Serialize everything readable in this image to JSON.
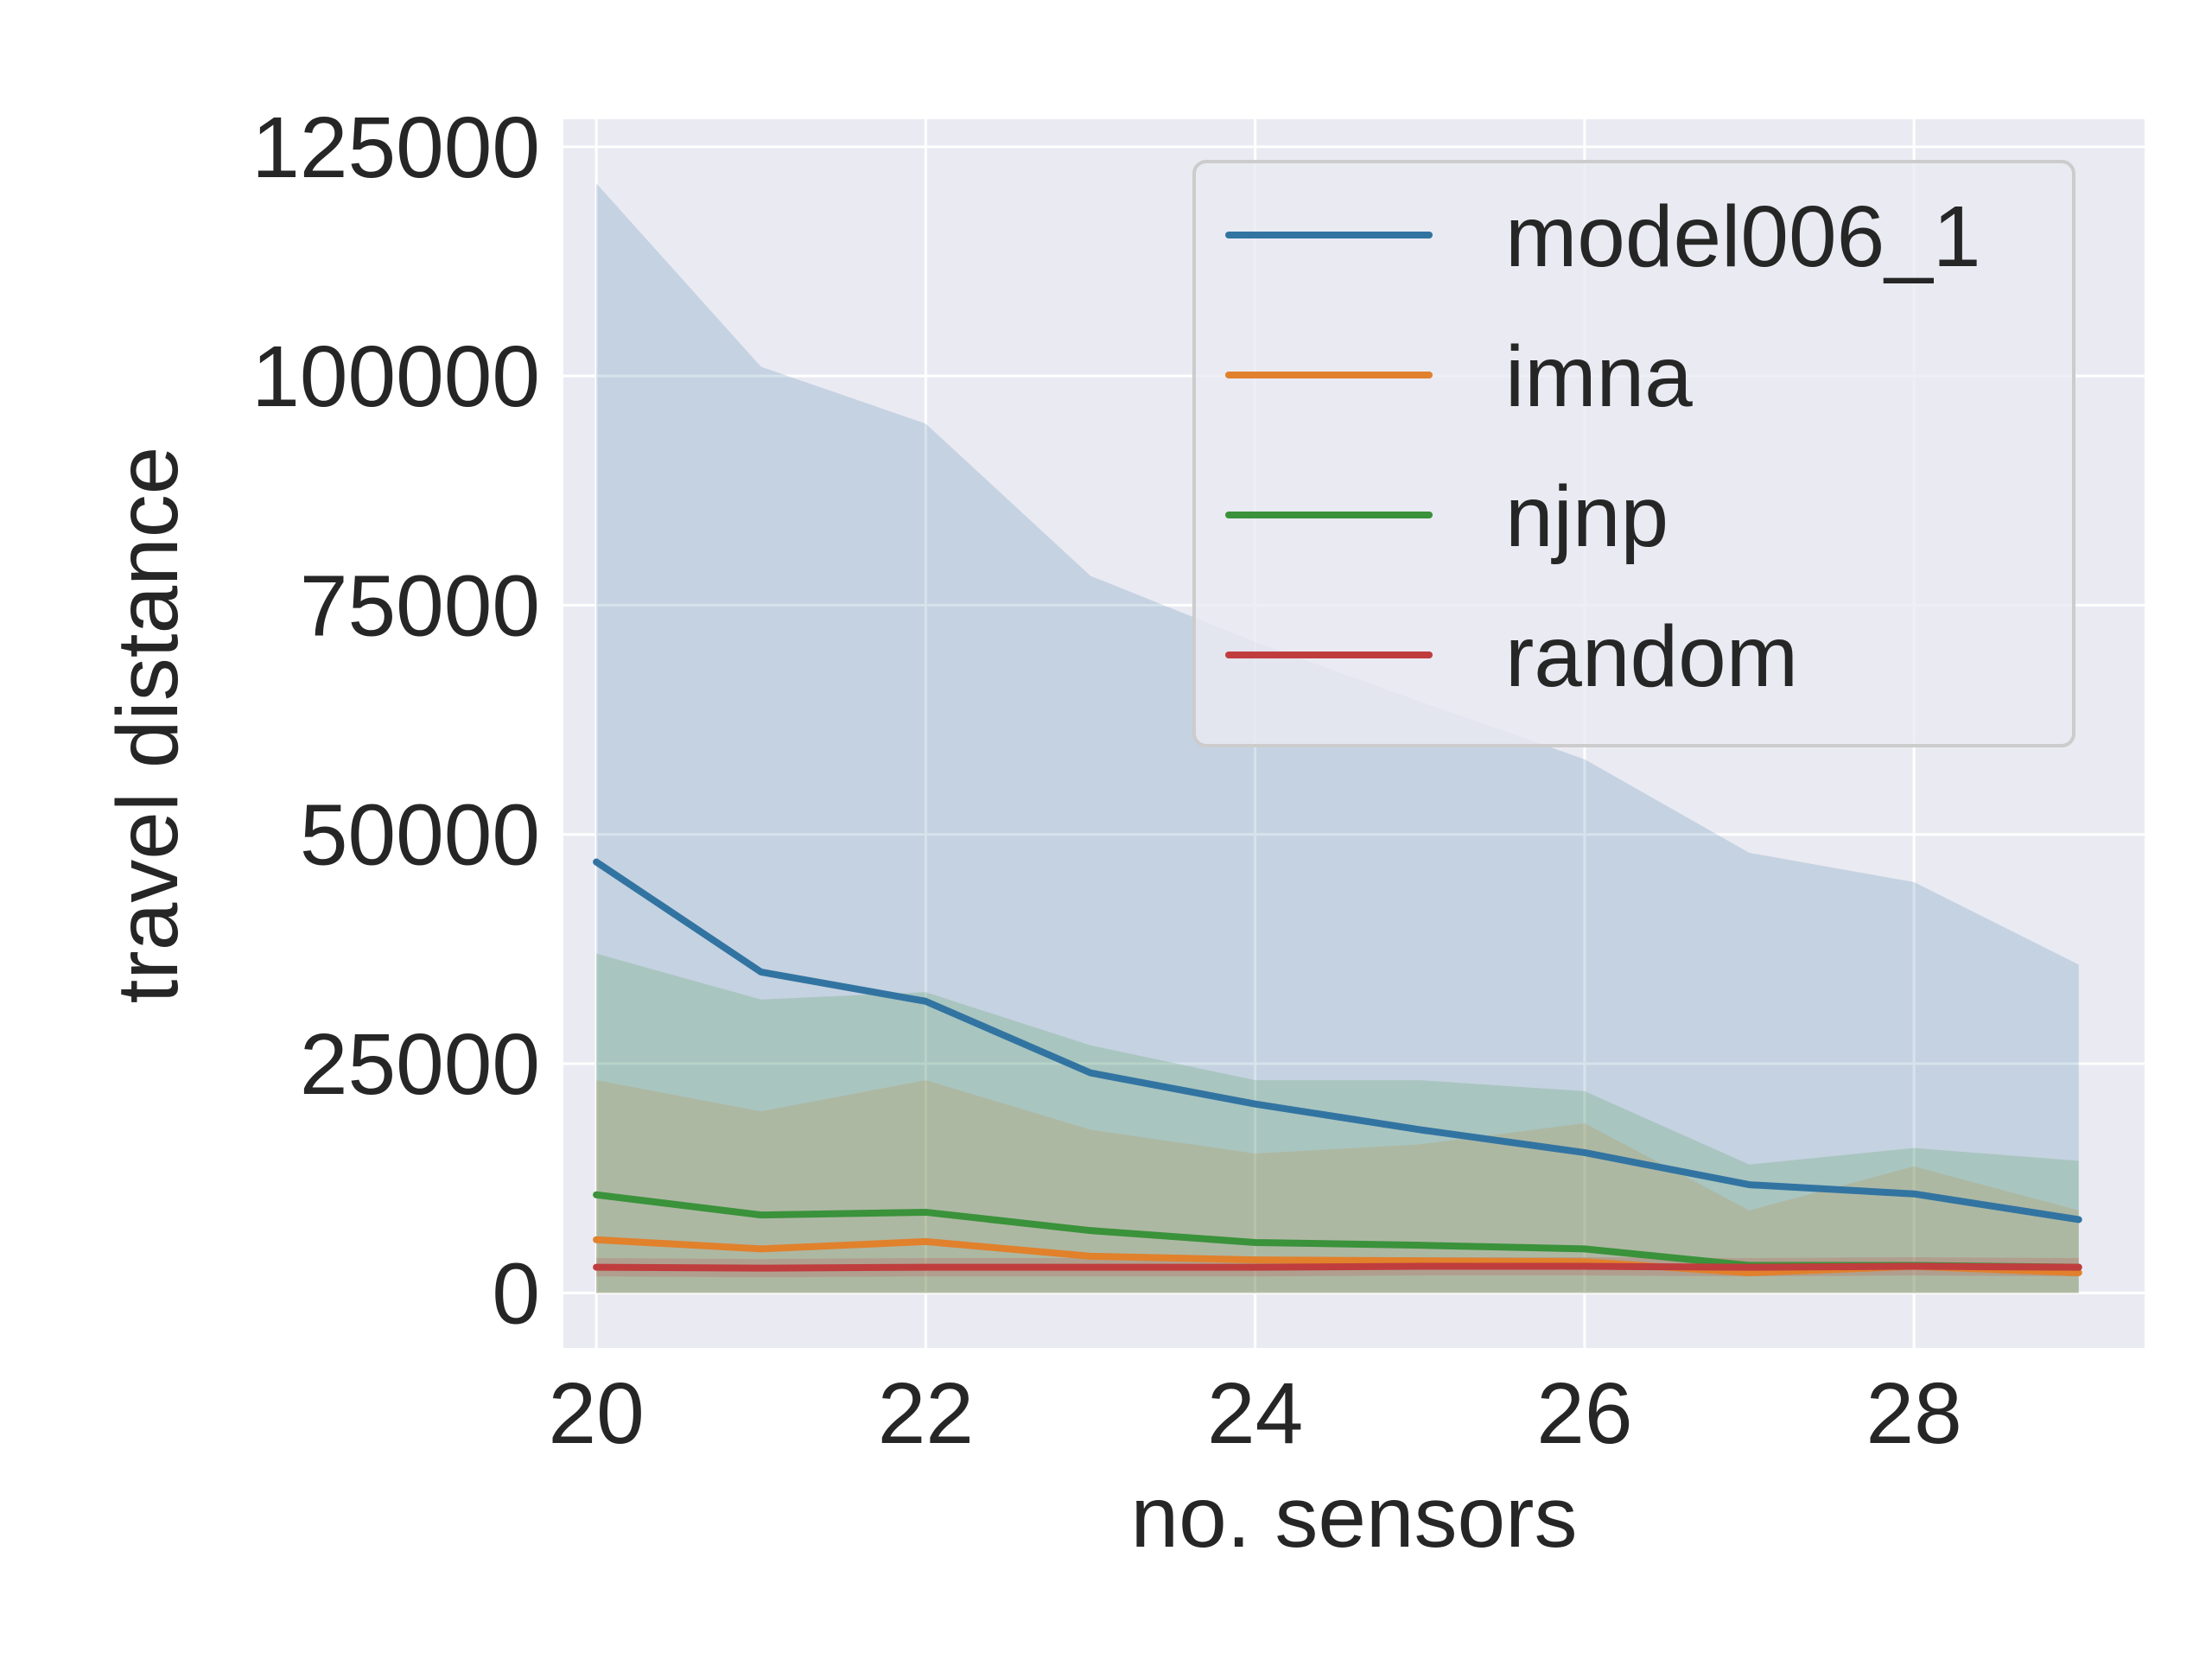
{
  "colors": {
    "plot_background": "#eaeaf2",
    "grid": "#ffffff",
    "text": "#262626"
  },
  "chart_data": {
    "type": "line",
    "xlabel": "no. sensors",
    "ylabel": "travel distance",
    "xlim": [
      19.8,
      29.4
    ],
    "ylim": [
      -6000,
      128000
    ],
    "xticks": [
      20,
      22,
      24,
      26,
      28
    ],
    "yticks": [
      0,
      25000,
      50000,
      75000,
      100000,
      125000
    ],
    "grid": true,
    "legend_position": "top-right",
    "x": [
      20,
      21,
      22,
      23,
      24,
      25,
      26,
      27,
      28,
      29
    ],
    "series": [
      {
        "name": "model006_1",
        "color": "#3274a1",
        "values": [
          47000,
          35000,
          31800,
          24000,
          20600,
          17800,
          15300,
          11800,
          10800,
          8000
        ],
        "band_upper": [
          121000,
          101000,
          94800,
          78200,
          71000,
          64500,
          58200,
          48000,
          44800,
          35800
        ],
        "band_lower": [
          0,
          0,
          0,
          0,
          0,
          0,
          0,
          0,
          0,
          0
        ]
      },
      {
        "name": "imna",
        "color": "#e1812c",
        "values": [
          5800,
          4800,
          5600,
          4000,
          3600,
          3500,
          3400,
          2200,
          2900,
          2200
        ],
        "band_upper": [
          23200,
          19800,
          23200,
          17800,
          15200,
          16200,
          18500,
          9000,
          13800,
          9000
        ],
        "band_lower": [
          0,
          0,
          0,
          0,
          0,
          0,
          0,
          0,
          0,
          0
        ]
      },
      {
        "name": "njnp",
        "color": "#3a923a",
        "values": [
          10700,
          8500,
          8800,
          6800,
          5500,
          5200,
          4800,
          3000,
          3000,
          2800
        ],
        "band_upper": [
          37000,
          32000,
          32800,
          27000,
          23200,
          23200,
          22000,
          14000,
          15800,
          14400
        ],
        "band_lower": [
          0,
          0,
          0,
          0,
          0,
          0,
          0,
          0,
          0,
          0
        ]
      },
      {
        "name": "random",
        "color": "#c03d3e",
        "values": [
          2800,
          2700,
          2800,
          2800,
          2800,
          2900,
          2900,
          2800,
          2900,
          2800
        ],
        "band_upper": [
          3800,
          3700,
          3800,
          3800,
          3800,
          3900,
          3900,
          3800,
          3900,
          3800
        ],
        "band_lower": [
          1800,
          1700,
          1800,
          1800,
          1800,
          1900,
          1900,
          1800,
          1900,
          1800
        ]
      }
    ]
  }
}
